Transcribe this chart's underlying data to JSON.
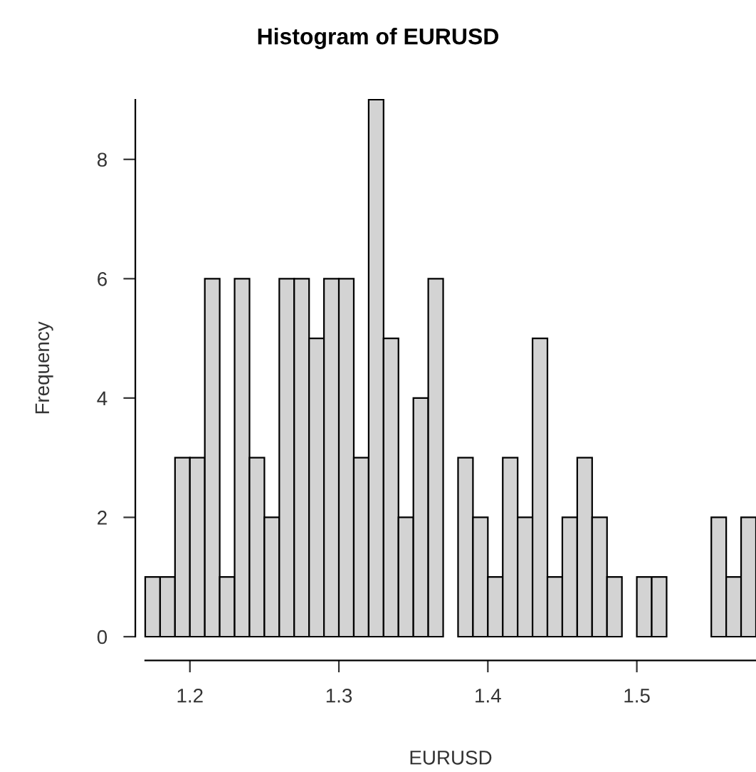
{
  "chart_data": {
    "type": "histogram",
    "title": "Histogram of EURUSD",
    "xlabel": "EURUSD",
    "ylabel": "Frequency",
    "bins": [
      1.17,
      1.18,
      1.19,
      1.2,
      1.21,
      1.22,
      1.23,
      1.24,
      1.25,
      1.26,
      1.27,
      1.28,
      1.29,
      1.3,
      1.31,
      1.32,
      1.33,
      1.34,
      1.35,
      1.36,
      1.37,
      1.38,
      1.39,
      1.4,
      1.41,
      1.42,
      1.43,
      1.44,
      1.45,
      1.46,
      1.47,
      1.48,
      1.49,
      1.5,
      1.51,
      1.52,
      1.53,
      1.54,
      1.55,
      1.56,
      1.57,
      1.58
    ],
    "values": [
      1,
      1,
      3,
      3,
      6,
      1,
      6,
      3,
      2,
      6,
      6,
      5,
      6,
      6,
      3,
      9,
      5,
      2,
      4,
      6,
      0,
      3,
      2,
      1,
      3,
      2,
      5,
      1,
      2,
      3,
      2,
      1,
      0,
      1,
      1,
      0,
      0,
      0,
      2,
      1,
      2
    ],
    "color": "#d3d3d3",
    "xlim": [
      1.17,
      1.58
    ],
    "ylim": [
      0,
      9
    ],
    "xticks": [
      1.2,
      1.3,
      1.4,
      1.5
    ],
    "yticks": [
      0,
      2,
      4,
      6,
      8
    ]
  }
}
